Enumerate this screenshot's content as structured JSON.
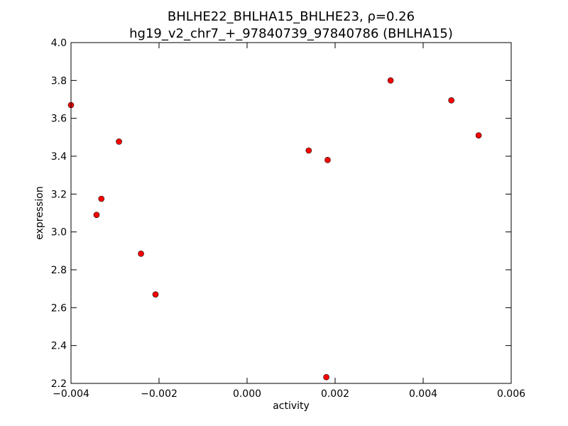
{
  "chart_data": {
    "type": "scatter",
    "title": "BHLHE22_BHLHA15_BHLHE23, ρ=0.26",
    "subtitle": "hg19_v2_chr7_+_97840739_97840786 (BHLHA15)",
    "xlabel": "activity",
    "ylabel": "expression",
    "xlim": [
      -0.004,
      0.006
    ],
    "ylim": [
      2.2,
      4.0
    ],
    "x_ticks": [
      -0.004,
      -0.002,
      0.0,
      0.002,
      0.004,
      0.006
    ],
    "x_tick_labels": [
      "−0.004",
      "−0.002",
      "0.000",
      "0.002",
      "0.004",
      "0.006"
    ],
    "y_ticks": [
      2.2,
      2.4,
      2.6,
      2.8,
      3.0,
      3.2,
      3.4,
      3.6,
      3.8,
      4.0
    ],
    "y_tick_labels": [
      "2.2",
      "2.4",
      "2.6",
      "2.8",
      "3.0",
      "3.2",
      "3.4",
      "3.6",
      "3.8",
      "4.0"
    ],
    "grid": false,
    "legend": "none",
    "marker_color": "#ff0000",
    "points": [
      {
        "x": -0.004,
        "y": 3.67
      },
      {
        "x": -0.00342,
        "y": 3.09
      },
      {
        "x": -0.00331,
        "y": 3.175
      },
      {
        "x": -0.00291,
        "y": 3.477
      },
      {
        "x": -0.00241,
        "y": 2.885
      },
      {
        "x": -0.00208,
        "y": 2.67
      },
      {
        "x": 0.0014,
        "y": 3.43
      },
      {
        "x": 0.0018,
        "y": 2.233
      },
      {
        "x": 0.00183,
        "y": 3.38
      },
      {
        "x": 0.00326,
        "y": 3.8
      },
      {
        "x": 0.00464,
        "y": 3.695
      },
      {
        "x": 0.00526,
        "y": 3.51
      }
    ]
  }
}
